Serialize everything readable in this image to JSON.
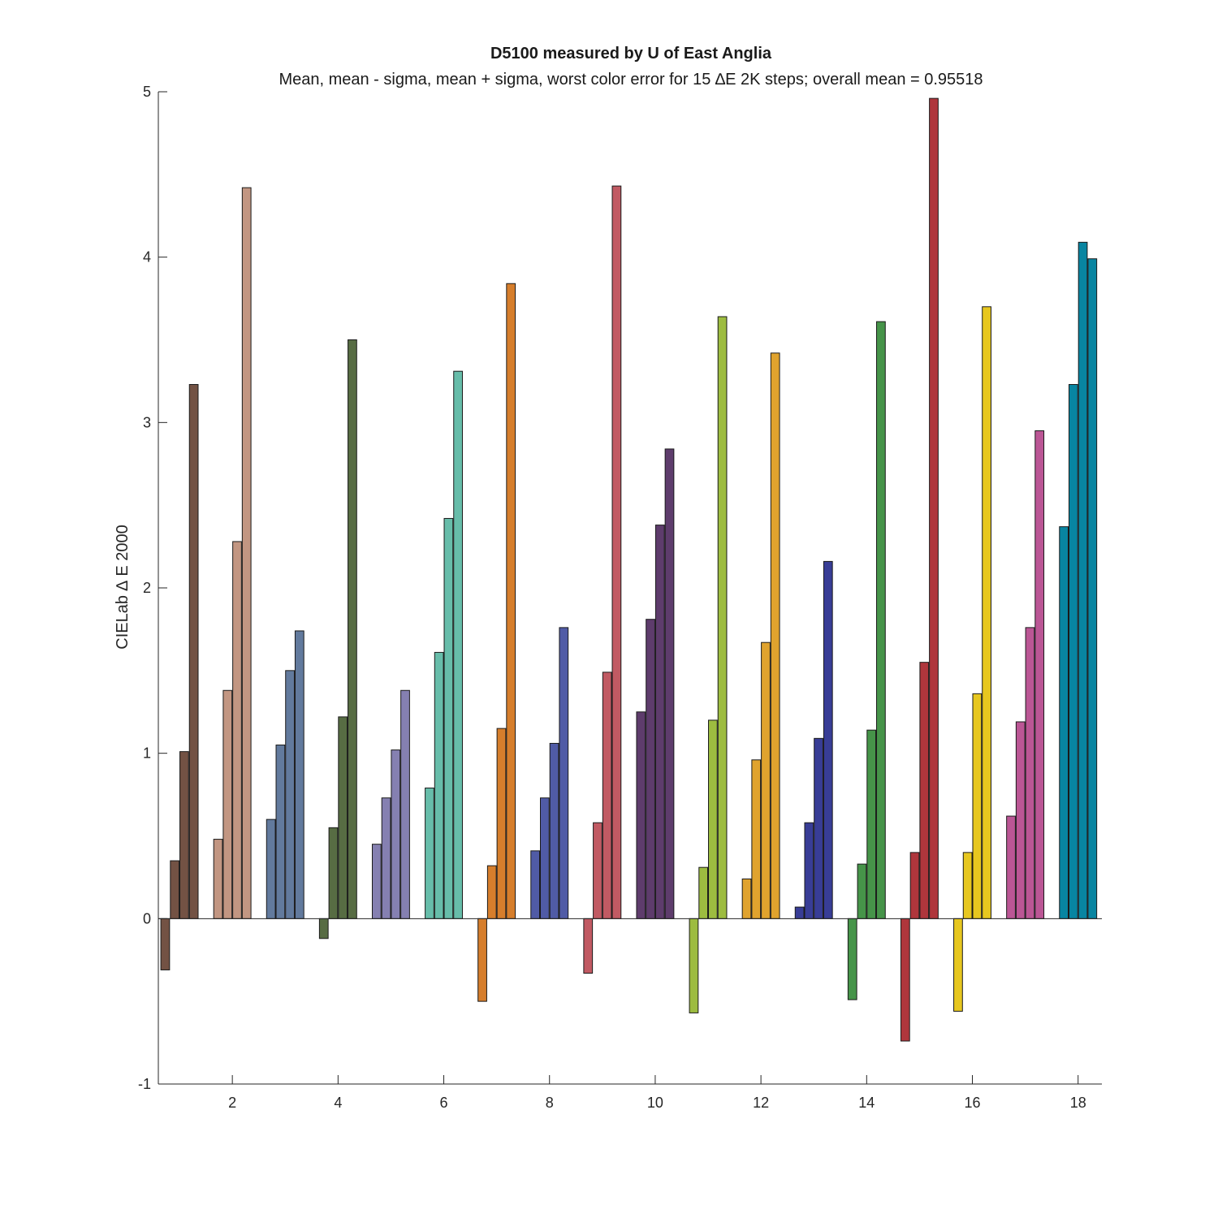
{
  "chart_data": {
    "type": "bar",
    "title": "D5100 measured by U of East Anglia",
    "subtitle": "Mean, mean - sigma, mean + sigma, worst color error for 15 ∆E 2K steps; overall mean = 0.95518",
    "ylabel": "CIELab ∆ E 2000",
    "xlabel": "",
    "xlim": [
      0.6,
      18.45
    ],
    "ylim": [
      -1,
      5
    ],
    "xticks": [
      2,
      4,
      6,
      8,
      10,
      12,
      14,
      16,
      18
    ],
    "yticks": [
      -1,
      0,
      1,
      2,
      3,
      4,
      5
    ],
    "series_note": "bars per group in order: mean - sigma, mean, mean + sigma, worst",
    "groups": [
      {
        "x": 1,
        "color": "#735244",
        "values": [
          -0.31,
          0.35,
          1.01,
          3.23
        ]
      },
      {
        "x": 2,
        "color": "#c29682",
        "values": [
          0.48,
          1.38,
          2.28,
          4.42
        ]
      },
      {
        "x": 3,
        "color": "#627a9d",
        "values": [
          0.6,
          1.05,
          1.5,
          1.74
        ]
      },
      {
        "x": 4,
        "color": "#576c43",
        "values": [
          -0.12,
          0.55,
          1.22,
          3.5
        ]
      },
      {
        "x": 5,
        "color": "#8580b1",
        "values": [
          0.45,
          0.73,
          1.02,
          1.38
        ]
      },
      {
        "x": 6,
        "color": "#67bdaa",
        "values": [
          0.79,
          1.61,
          2.42,
          3.31
        ]
      },
      {
        "x": 7,
        "color": "#d67e2c",
        "values": [
          -0.5,
          0.32,
          1.15,
          3.84
        ]
      },
      {
        "x": 8,
        "color": "#505ba6",
        "values": [
          0.41,
          0.73,
          1.06,
          1.76
        ]
      },
      {
        "x": 9,
        "color": "#c15a63",
        "values": [
          -0.33,
          0.58,
          1.49,
          4.43
        ]
      },
      {
        "x": 10,
        "color": "#5e3c6c",
        "values": [
          1.25,
          1.81,
          2.38,
          2.84
        ]
      },
      {
        "x": 11,
        "color": "#9dbc40",
        "values": [
          -0.57,
          0.31,
          1.2,
          3.64
        ]
      },
      {
        "x": 12,
        "color": "#e0a32e",
        "values": [
          0.24,
          0.96,
          1.67,
          3.42
        ]
      },
      {
        "x": 13,
        "color": "#383d96",
        "values": [
          0.07,
          0.58,
          1.09,
          2.16
        ]
      },
      {
        "x": 14,
        "color": "#469449",
        "values": [
          -0.49,
          0.33,
          1.14,
          3.61
        ]
      },
      {
        "x": 15,
        "color": "#af363c",
        "values": [
          -0.74,
          0.4,
          1.55,
          4.96
        ]
      },
      {
        "x": 16,
        "color": "#e7c71f",
        "values": [
          -0.56,
          0.4,
          1.36,
          3.7
        ]
      },
      {
        "x": 17,
        "color": "#bb5695",
        "values": [
          0.62,
          1.19,
          1.76,
          2.95
        ]
      },
      {
        "x": 18,
        "color": "#0885a1",
        "values": [
          2.37,
          3.23,
          4.09,
          3.99
        ]
      }
    ],
    "grid": false,
    "legend": "none"
  }
}
